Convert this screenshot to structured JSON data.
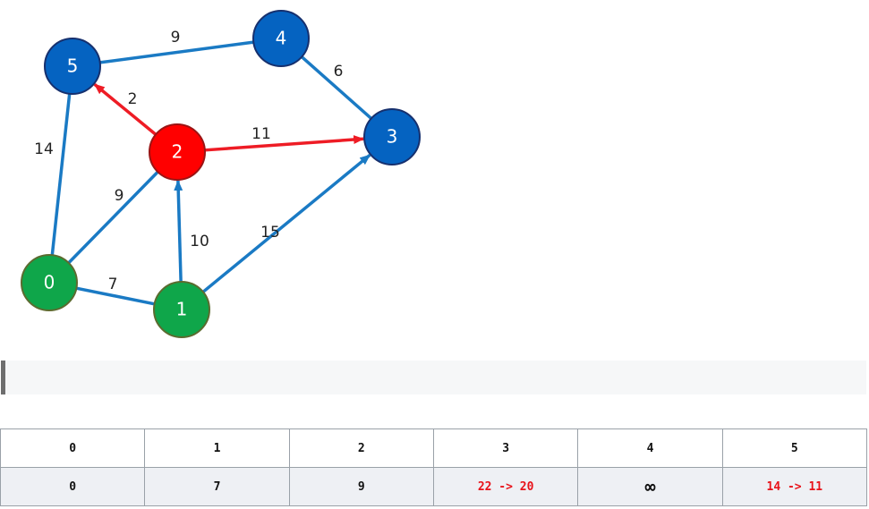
{
  "colors": {
    "visited_node": "#0fa64a",
    "current_node": "#ff0000",
    "unvisited_node": "#0563c1",
    "edge_default": "#1a7ac4",
    "edge_highlight": "#ee1c25",
    "updated_text": "#e8131a"
  },
  "graph": {
    "nodes": [
      {
        "id": "0",
        "state": "visited"
      },
      {
        "id": "1",
        "state": "visited"
      },
      {
        "id": "2",
        "state": "current"
      },
      {
        "id": "3",
        "state": "unvisited"
      },
      {
        "id": "4",
        "state": "unvisited"
      },
      {
        "id": "5",
        "state": "unvisited"
      }
    ],
    "edges": [
      {
        "from": "0",
        "to": "1",
        "weight": "7",
        "directed": false,
        "highlight": false
      },
      {
        "from": "0",
        "to": "2",
        "weight": "9",
        "directed": false,
        "highlight": false
      },
      {
        "from": "0",
        "to": "5",
        "weight": "14",
        "directed": false,
        "highlight": false
      },
      {
        "from": "1",
        "to": "2",
        "weight": "10",
        "directed": true,
        "highlight": false
      },
      {
        "from": "1",
        "to": "3",
        "weight": "15",
        "directed": true,
        "highlight": false
      },
      {
        "from": "2",
        "to": "5",
        "weight": "2",
        "directed": true,
        "highlight": true
      },
      {
        "from": "2",
        "to": "3",
        "weight": "11",
        "directed": true,
        "highlight": true
      },
      {
        "from": "5",
        "to": "4",
        "weight": "9",
        "directed": false,
        "highlight": false
      },
      {
        "from": "4",
        "to": "3",
        "weight": "6",
        "directed": false,
        "highlight": false
      }
    ]
  },
  "table": {
    "headers": [
      "0",
      "1",
      "2",
      "3",
      "4",
      "5"
    ],
    "values": [
      {
        "text": "0",
        "updated": false
      },
      {
        "text": "7",
        "updated": false
      },
      {
        "text": "9",
        "updated": false
      },
      {
        "text": "22 -> 20",
        "updated": true
      },
      {
        "text": "∞",
        "updated": false
      },
      {
        "text": "14 -> 11",
        "updated": true
      }
    ]
  }
}
